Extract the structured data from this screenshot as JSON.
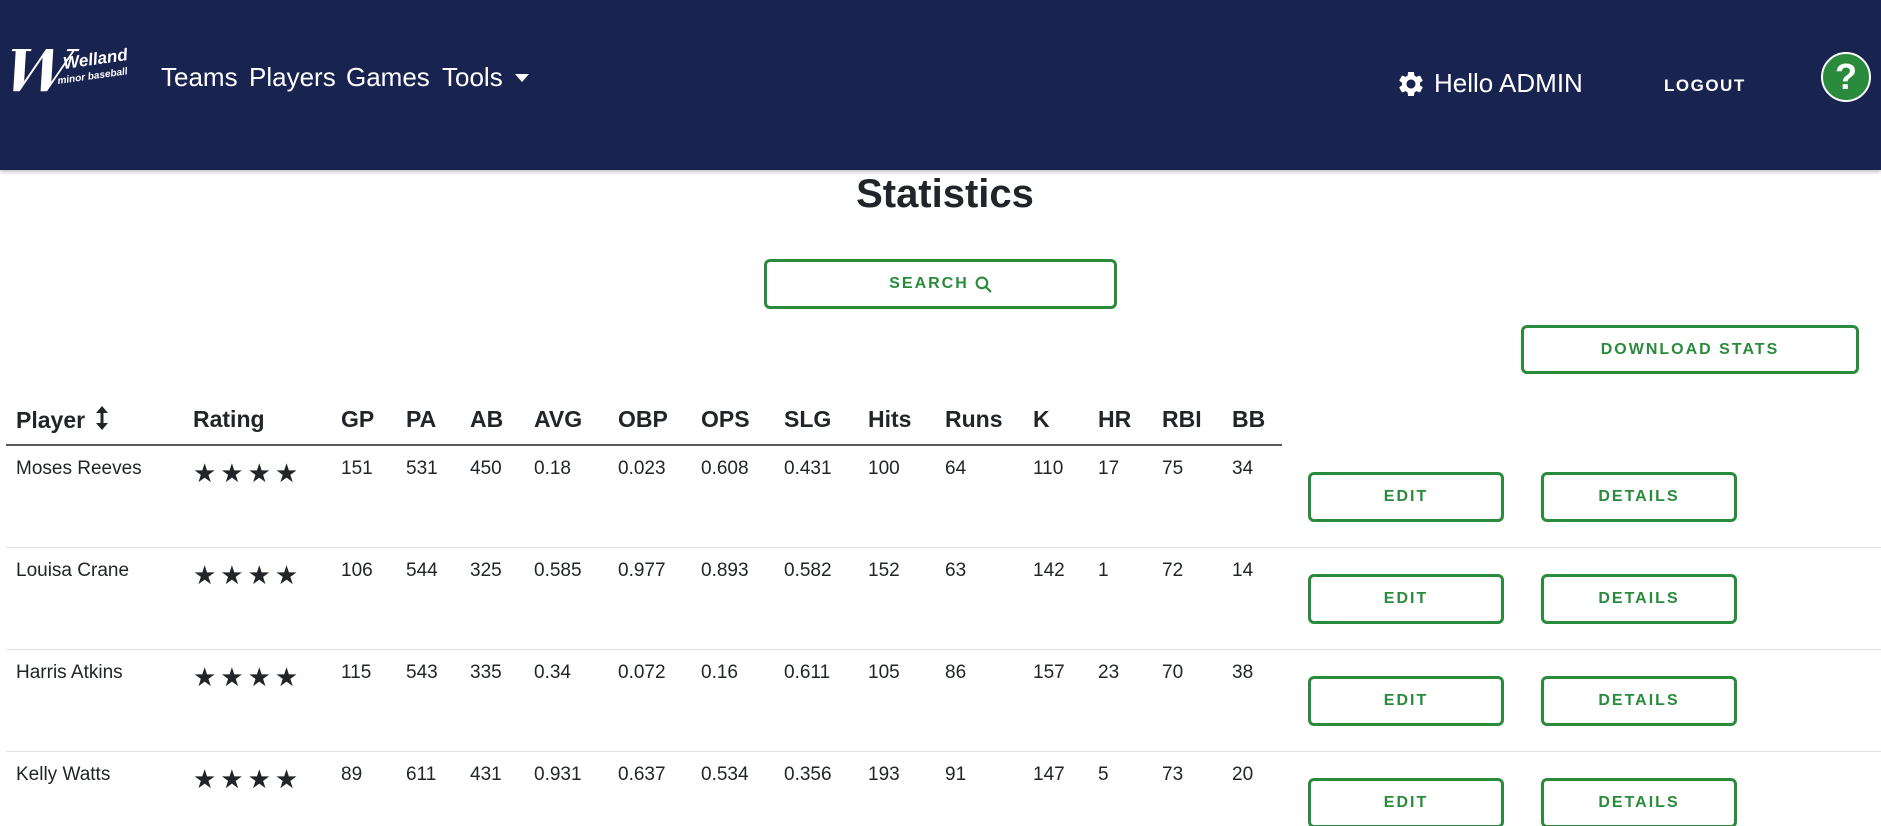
{
  "nav": {
    "logo_main": "Welland",
    "logo_sub": "minor baseball",
    "items": [
      "Teams",
      "Players",
      "Games",
      "Tools"
    ],
    "greeting": "Hello ADMIN",
    "logout": "LOGOUT",
    "help": "?"
  },
  "page": {
    "title": "Statistics",
    "search_label": "SEARCH",
    "download_label": "DOWNLOAD STATS"
  },
  "table": {
    "headers": [
      "Player",
      "Rating",
      "GP",
      "PA",
      "AB",
      "AVG",
      "OBP",
      "OPS",
      "SLG",
      "Hits",
      "Runs",
      "K",
      "HR",
      "RBI",
      "BB"
    ],
    "rows": [
      {
        "player": "Moses Reeves",
        "rating": "★★★★",
        "gp": "151",
        "pa": "531",
        "ab": "450",
        "avg": "0.18",
        "obp": "0.023",
        "ops": "0.608",
        "slg": "0.431",
        "hits": "100",
        "runs": "64",
        "k": "110",
        "hr": "17",
        "rbi": "75",
        "bb": "34",
        "edit": "EDIT",
        "details": "DETAILS"
      },
      {
        "player": "Louisa Crane",
        "rating": "★★★★",
        "gp": "106",
        "pa": "544",
        "ab": "325",
        "avg": "0.585",
        "obp": "0.977",
        "ops": "0.893",
        "slg": "0.582",
        "hits": "152",
        "runs": "63",
        "k": "142",
        "hr": "1",
        "rbi": "72",
        "bb": "14",
        "edit": "EDIT",
        "details": "DETAILS"
      },
      {
        "player": "Harris Atkins",
        "rating": "★★★★",
        "gp": "115",
        "pa": "543",
        "ab": "335",
        "avg": "0.34",
        "obp": "0.072",
        "ops": "0.16",
        "slg": "0.611",
        "hits": "105",
        "runs": "86",
        "k": "157",
        "hr": "23",
        "rbi": "70",
        "bb": "38",
        "edit": "EDIT",
        "details": "DETAILS"
      },
      {
        "player": "Kelly Watts",
        "rating": "★★★★",
        "gp": "89",
        "pa": "611",
        "ab": "431",
        "avg": "0.931",
        "obp": "0.637",
        "ops": "0.534",
        "slg": "0.356",
        "hits": "193",
        "runs": "91",
        "k": "147",
        "hr": "5",
        "rbi": "73",
        "bb": "20",
        "edit": "EDIT",
        "details": "DETAILS"
      }
    ]
  },
  "colors": {
    "navbar": "#18234f",
    "accent_green": "#2a8b3c",
    "text": "#212529"
  },
  "icons": [
    "welland-logo",
    "chevron-down-icon",
    "gear-icon",
    "question-icon",
    "search-icon",
    "sort-icon",
    "star-icon"
  ]
}
